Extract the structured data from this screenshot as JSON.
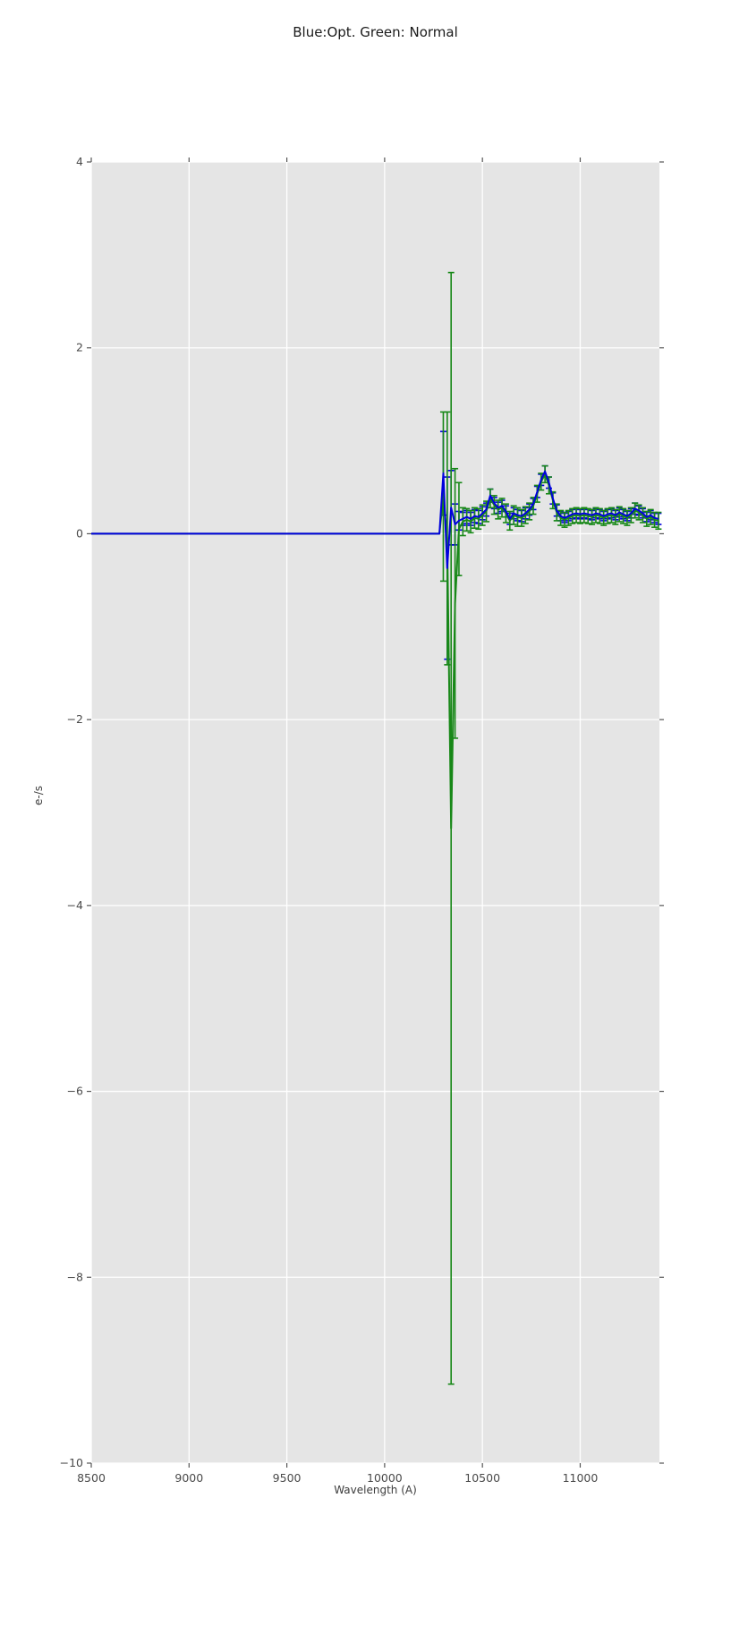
{
  "title": "Blue:Opt. Green: Normal",
  "chart_data": {
    "type": "line",
    "title": "Blue:Opt. Green: Normal",
    "xlabel": "Wavelength (A)",
    "ylabel": "e-/s",
    "xlim": [
      8500,
      11405
    ],
    "ylim": [
      -10,
      4
    ],
    "grid": true,
    "legend": "none (colors named in title)",
    "plot_bg": "#e5e5e5",
    "grid_color": "#ffffff",
    "tick_color": "#555555",
    "tick_label_color": "#4a4a4a",
    "x_ticks": [
      8500,
      9000,
      9500,
      10000,
      10500,
      11000
    ],
    "x_tick_labels": [
      "8500",
      "9000",
      "9500",
      "10000",
      "10500",
      "11000"
    ],
    "y_ticks": [
      4,
      2,
      0,
      -2,
      -4,
      -6,
      -8,
      -10
    ],
    "y_tick_labels": [
      "4",
      "2",
      "0",
      "−2",
      "−4",
      "−6",
      "−8",
      "−10"
    ],
    "series": [
      {
        "name": "Opt",
        "color": "#0000dd",
        "points_xye": [
          [
            8500,
            0,
            0
          ],
          [
            9000,
            0,
            0
          ],
          [
            9500,
            0,
            0
          ],
          [
            10000,
            0,
            0
          ],
          [
            10280,
            0,
            0
          ],
          [
            10300,
            0.65,
            0.45
          ],
          [
            10320,
            -0.37,
            0.98
          ],
          [
            10340,
            0.28,
            0.4
          ],
          [
            10360,
            0.1,
            0.22
          ],
          [
            10380,
            0.14,
            0.1
          ],
          [
            10400,
            0.16,
            0.07
          ],
          [
            10420,
            0.18,
            0.07
          ],
          [
            10440,
            0.16,
            0.07
          ],
          [
            10460,
            0.19,
            0.07
          ],
          [
            10480,
            0.18,
            0.07
          ],
          [
            10500,
            0.22,
            0.07
          ],
          [
            10520,
            0.26,
            0.07
          ],
          [
            10540,
            0.41,
            0.07
          ],
          [
            10560,
            0.33,
            0.06
          ],
          [
            10580,
            0.28,
            0.06
          ],
          [
            10600,
            0.3,
            0.06
          ],
          [
            10620,
            0.24,
            0.06
          ],
          [
            10640,
            0.16,
            0.06
          ],
          [
            10660,
            0.22,
            0.06
          ],
          [
            10680,
            0.2,
            0.06
          ],
          [
            10700,
            0.19,
            0.06
          ],
          [
            10720,
            0.22,
            0.06
          ],
          [
            10740,
            0.26,
            0.06
          ],
          [
            10760,
            0.32,
            0.06
          ],
          [
            10780,
            0.45,
            0.06
          ],
          [
            10800,
            0.58,
            0.06
          ],
          [
            10820,
            0.67,
            0.06
          ],
          [
            10840,
            0.55,
            0.06
          ],
          [
            10860,
            0.38,
            0.06
          ],
          [
            10880,
            0.25,
            0.06
          ],
          [
            10900,
            0.19,
            0.05
          ],
          [
            10920,
            0.17,
            0.05
          ],
          [
            10940,
            0.19,
            0.05
          ],
          [
            10960,
            0.21,
            0.05
          ],
          [
            10980,
            0.22,
            0.05
          ],
          [
            11000,
            0.21,
            0.05
          ],
          [
            11020,
            0.22,
            0.05
          ],
          [
            11040,
            0.21,
            0.05
          ],
          [
            11060,
            0.2,
            0.05
          ],
          [
            11080,
            0.22,
            0.05
          ],
          [
            11100,
            0.21,
            0.05
          ],
          [
            11120,
            0.19,
            0.05
          ],
          [
            11140,
            0.21,
            0.05
          ],
          [
            11160,
            0.22,
            0.05
          ],
          [
            11180,
            0.2,
            0.05
          ],
          [
            11200,
            0.23,
            0.05
          ],
          [
            11220,
            0.21,
            0.05
          ],
          [
            11240,
            0.19,
            0.05
          ],
          [
            11260,
            0.22,
            0.05
          ],
          [
            11280,
            0.27,
            0.06
          ],
          [
            11300,
            0.25,
            0.05
          ],
          [
            11320,
            0.22,
            0.05
          ],
          [
            11340,
            0.18,
            0.05
          ],
          [
            11360,
            0.2,
            0.05
          ],
          [
            11380,
            0.17,
            0.05
          ],
          [
            11400,
            0.16,
            0.06
          ]
        ]
      },
      {
        "name": "Normal",
        "color": "#188818",
        "points_xye": [
          [
            8500,
            0,
            0
          ],
          [
            9000,
            0,
            0
          ],
          [
            9500,
            0,
            0
          ],
          [
            10000,
            0,
            0
          ],
          [
            10280,
            0,
            0
          ],
          [
            10300,
            0.4,
            0.91
          ],
          [
            10320,
            -0.05,
            1.36
          ],
          [
            10340,
            -3.17,
            5.98
          ],
          [
            10360,
            -0.75,
            1.45
          ],
          [
            10380,
            0.05,
            0.5
          ],
          [
            10400,
            0.13,
            0.15
          ],
          [
            10420,
            0.15,
            0.12
          ],
          [
            10440,
            0.13,
            0.12
          ],
          [
            10460,
            0.17,
            0.11
          ],
          [
            10480,
            0.16,
            0.11
          ],
          [
            10500,
            0.2,
            0.11
          ],
          [
            10520,
            0.24,
            0.11
          ],
          [
            10540,
            0.38,
            0.1
          ],
          [
            10560,
            0.31,
            0.1
          ],
          [
            10580,
            0.26,
            0.1
          ],
          [
            10600,
            0.28,
            0.1
          ],
          [
            10620,
            0.22,
            0.1
          ],
          [
            10640,
            0.14,
            0.1
          ],
          [
            10660,
            0.2,
            0.1
          ],
          [
            10680,
            0.18,
            0.1
          ],
          [
            10700,
            0.17,
            0.09
          ],
          [
            10720,
            0.2,
            0.09
          ],
          [
            10740,
            0.24,
            0.09
          ],
          [
            10760,
            0.3,
            0.09
          ],
          [
            10780,
            0.43,
            0.09
          ],
          [
            10800,
            0.56,
            0.09
          ],
          [
            10820,
            0.64,
            0.09
          ],
          [
            10840,
            0.52,
            0.09
          ],
          [
            10860,
            0.36,
            0.09
          ],
          [
            10880,
            0.23,
            0.09
          ],
          [
            10900,
            0.17,
            0.08
          ],
          [
            10920,
            0.15,
            0.08
          ],
          [
            10940,
            0.17,
            0.08
          ],
          [
            10960,
            0.19,
            0.08
          ],
          [
            10980,
            0.2,
            0.08
          ],
          [
            11000,
            0.19,
            0.08
          ],
          [
            11020,
            0.2,
            0.08
          ],
          [
            11040,
            0.19,
            0.08
          ],
          [
            11060,
            0.18,
            0.08
          ],
          [
            11080,
            0.2,
            0.08
          ],
          [
            11100,
            0.19,
            0.08
          ],
          [
            11120,
            0.17,
            0.08
          ],
          [
            11140,
            0.19,
            0.08
          ],
          [
            11160,
            0.2,
            0.08
          ],
          [
            11180,
            0.18,
            0.08
          ],
          [
            11200,
            0.21,
            0.08
          ],
          [
            11220,
            0.19,
            0.08
          ],
          [
            11240,
            0.17,
            0.08
          ],
          [
            11260,
            0.2,
            0.08
          ],
          [
            11280,
            0.25,
            0.08
          ],
          [
            11300,
            0.23,
            0.08
          ],
          [
            11320,
            0.2,
            0.08
          ],
          [
            11340,
            0.16,
            0.08
          ],
          [
            11360,
            0.18,
            0.08
          ],
          [
            11380,
            0.15,
            0.08
          ],
          [
            11400,
            0.14,
            0.09
          ]
        ]
      }
    ]
  }
}
